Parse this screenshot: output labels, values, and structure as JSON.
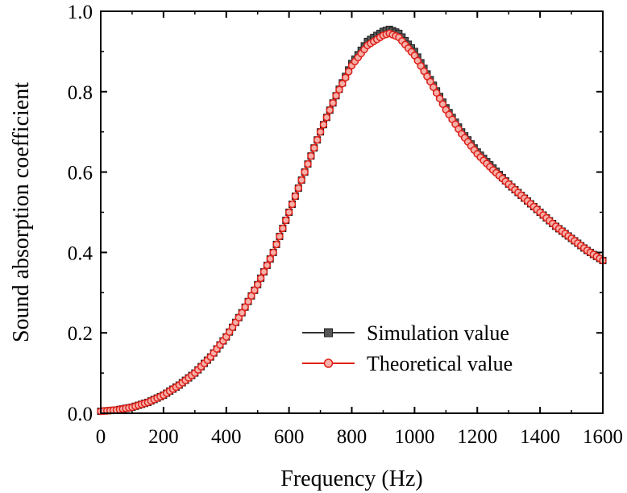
{
  "chart_data": {
    "type": "line",
    "title": "",
    "xlabel": "Frequency (Hz)",
    "ylabel": "Sound absorption coefficient",
    "xlim": [
      0,
      1600
    ],
    "ylim": [
      0.0,
      1.0
    ],
    "x_ticks": [
      0,
      200,
      400,
      600,
      800,
      1000,
      1200,
      1400,
      1600
    ],
    "y_ticks": [
      0.0,
      0.2,
      0.4,
      0.6,
      0.8,
      1.0
    ],
    "x_tick_labels": [
      "0",
      "200",
      "400",
      "600",
      "800",
      "1000",
      "1200",
      "1400",
      "1600"
    ],
    "y_tick_labels": [
      "0.0",
      "0.2",
      "0.4",
      "0.6",
      "0.8",
      "1.0"
    ],
    "grid": false,
    "legend_position": "bottom-right",
    "x": [
      0,
      50,
      100,
      150,
      200,
      250,
      300,
      350,
      400,
      450,
      500,
      550,
      600,
      650,
      700,
      750,
      800,
      850,
      900,
      920,
      950,
      1000,
      1050,
      1100,
      1150,
      1200,
      1250,
      1300,
      1350,
      1400,
      1450,
      1500,
      1550,
      1600
    ],
    "series": [
      {
        "name": "Simulation value",
        "color": "#333333",
        "marker": "square",
        "values": [
          0.005,
          0.008,
          0.015,
          0.027,
          0.045,
          0.07,
          0.1,
          0.14,
          0.19,
          0.25,
          0.32,
          0.4,
          0.5,
          0.6,
          0.7,
          0.79,
          0.87,
          0.925,
          0.95,
          0.955,
          0.945,
          0.9,
          0.83,
          0.76,
          0.7,
          0.65,
          0.61,
          0.57,
          0.535,
          0.5,
          0.465,
          0.435,
          0.405,
          0.38
        ]
      },
      {
        "name": "Theoretical value",
        "color": "#e0201a",
        "marker": "circle",
        "values": [
          0.005,
          0.008,
          0.015,
          0.027,
          0.045,
          0.07,
          0.1,
          0.14,
          0.19,
          0.25,
          0.32,
          0.4,
          0.5,
          0.6,
          0.7,
          0.79,
          0.865,
          0.915,
          0.94,
          0.945,
          0.935,
          0.89,
          0.825,
          0.755,
          0.695,
          0.645,
          0.605,
          0.57,
          0.535,
          0.5,
          0.465,
          0.435,
          0.405,
          0.38
        ]
      }
    ]
  }
}
